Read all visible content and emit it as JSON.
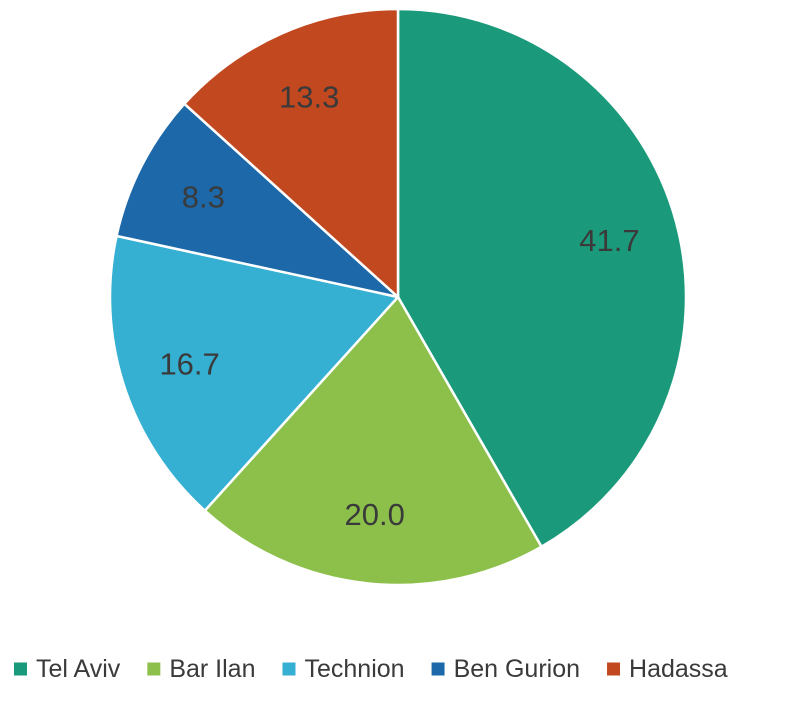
{
  "chart_data": {
    "type": "pie",
    "title": "",
    "categories": [
      "Tel Aviv",
      "Bar Ilan",
      "Technion",
      "Ben Gurion",
      "Hadassa"
    ],
    "values": [
      41.7,
      20.0,
      16.7,
      8.3,
      13.3
    ],
    "data_labels": [
      "41.7",
      "20.0",
      "16.7",
      "8.3",
      "13.3"
    ],
    "colors": [
      "#1a9a7b",
      "#8cc04a",
      "#35afd2",
      "#1d68a8",
      "#c2481f"
    ],
    "legend_placement": "bottom",
    "start_angle": "12 o'clock",
    "direction": "clockwise"
  }
}
